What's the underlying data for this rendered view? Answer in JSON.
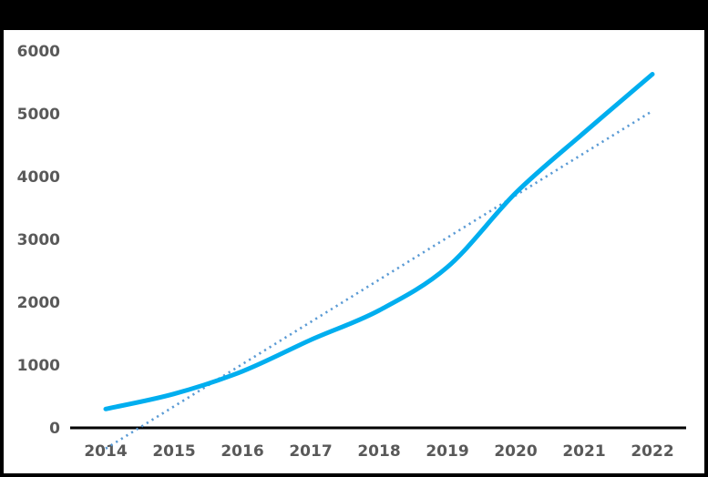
{
  "chart_data": {
    "type": "line",
    "title": "",
    "xlabel": "",
    "ylabel": "",
    "x": [
      2014,
      2015,
      2016,
      2017,
      2018,
      2019,
      2020,
      2021,
      2022
    ],
    "xtick_labels": [
      "2014",
      "2015",
      "2016",
      "2017",
      "2018",
      "2019",
      "2020",
      "2021",
      "2022"
    ],
    "series": [
      {
        "name": "main-series",
        "values": [
          300,
          540,
          900,
          1400,
          1870,
          2560,
          3740,
          4700,
          5630
        ],
        "color": "#00AEEF",
        "style": "solid-smooth",
        "stroke_width": 5
      }
    ],
    "trendline": {
      "name": "linear-trendline",
      "start": {
        "x": 2014,
        "value": -330
      },
      "end": {
        "x": 2022,
        "value": 5045
      },
      "color": "#5B9BD5",
      "style": "dotted",
      "stroke_width": 2.6
    },
    "ylim": [
      0,
      6000
    ],
    "ytick_step": 1000,
    "ytick_labels": [
      "0",
      "1000",
      "2000",
      "3000",
      "4000",
      "5000",
      "6000"
    ],
    "grid": false,
    "legend": "none",
    "colors": {
      "tick_label": "#595959",
      "axis_line": "#000000",
      "frame": "#000000",
      "background": "#FFFFFF"
    }
  }
}
